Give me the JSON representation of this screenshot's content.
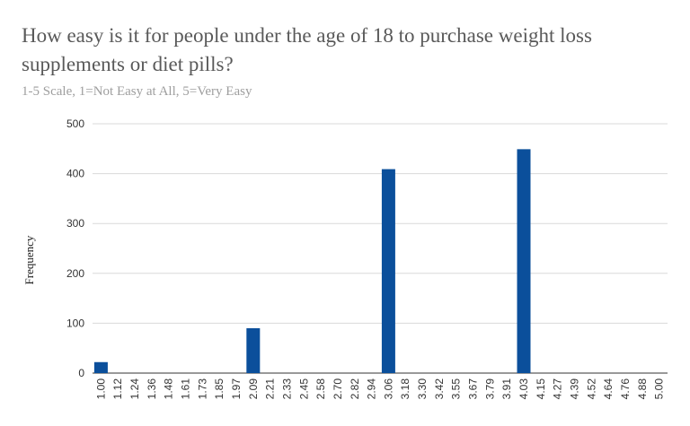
{
  "chart_data": {
    "type": "bar",
    "title": "How easy is it for people under the age of 18 to purchase weight loss supplements or diet pills?",
    "subtitle": "1-5 Scale, 1=Not Easy at All, 5=Very Easy",
    "xlabel": "",
    "ylabel": "Frequency",
    "categories": [
      "1.00",
      "1.12",
      "1.24",
      "1.36",
      "1.48",
      "1.61",
      "1.73",
      "1.85",
      "1.97",
      "2.09",
      "2.21",
      "2.33",
      "2.45",
      "2.58",
      "2.70",
      "2.82",
      "2.94",
      "3.06",
      "3.18",
      "3.30",
      "3.42",
      "3.55",
      "3.67",
      "3.79",
      "3.91",
      "4.03",
      "4.15",
      "4.27",
      "4.39",
      "4.52",
      "4.64",
      "4.76",
      "4.88",
      "5.00"
    ],
    "values": [
      22,
      0,
      0,
      0,
      0,
      0,
      0,
      0,
      0,
      90,
      0,
      0,
      0,
      0,
      0,
      0,
      0,
      409,
      0,
      0,
      0,
      0,
      0,
      0,
      0,
      449,
      0,
      0,
      0,
      0,
      0,
      0,
      0,
      0
    ],
    "ylim": [
      0,
      500
    ],
    "yticks": [
      0,
      100,
      200,
      300,
      400,
      500
    ],
    "grid": true,
    "bar_color": "#0b4f9b"
  }
}
